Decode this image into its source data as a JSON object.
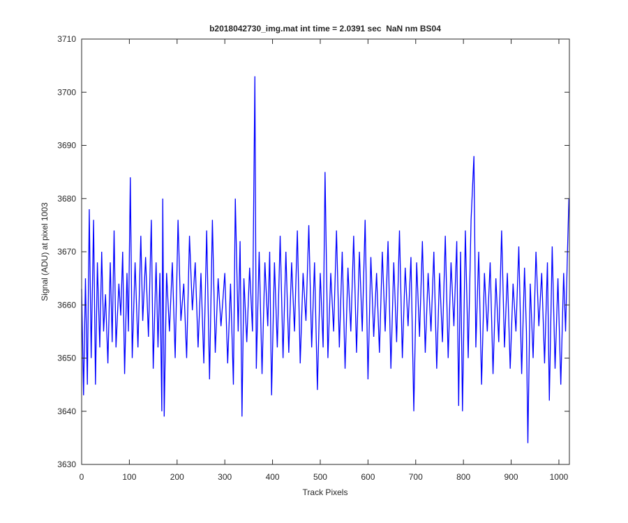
{
  "chart_data": {
    "type": "line",
    "title": "b2018042730_img.mat int time = 2.0391 sec  NaN nm BS04",
    "xlabel": "Track Pixels",
    "ylabel": "Signal (ADU) at pixel 1003",
    "xlim": [
      0,
      1022
    ],
    "ylim": [
      3630,
      3710
    ],
    "xticks": [
      0,
      100,
      200,
      300,
      400,
      500,
      600,
      700,
      800,
      900,
      1000
    ],
    "yticks": [
      3630,
      3640,
      3650,
      3660,
      3670,
      3680,
      3690,
      3700,
      3710
    ],
    "series": [
      {
        "color": "#0000ff",
        "x": [
          0,
          4,
          8,
          12,
          16,
          20,
          25,
          29,
          33,
          38,
          42,
          46,
          50,
          55,
          60,
          64,
          68,
          72,
          78,
          82,
          86,
          90,
          95,
          98,
          102,
          106,
          112,
          118,
          124,
          128,
          134,
          140,
          146,
          150,
          156,
          160,
          164,
          168,
          170,
          173,
          178,
          184,
          190,
          196,
          202,
          208,
          214,
          220,
          226,
          232,
          238,
          244,
          250,
          256,
          262,
          268,
          274,
          280,
          286,
          292,
          300,
          306,
          312,
          318,
          322,
          328,
          332,
          336,
          340,
          346,
          352,
          358,
          363,
          366,
          372,
          378,
          384,
          390,
          394,
          398,
          404,
          410,
          416,
          422,
          428,
          434,
          440,
          446,
          452,
          458,
          464,
          470,
          476,
          482,
          488,
          494,
          500,
          506,
          510,
          516,
          522,
          528,
          534,
          540,
          546,
          552,
          558,
          564,
          570,
          576,
          582,
          588,
          594,
          600,
          606,
          612,
          618,
          624,
          630,
          636,
          642,
          648,
          654,
          660,
          666,
          672,
          678,
          684,
          690,
          696,
          702,
          708,
          714,
          720,
          726,
          732,
          738,
          744,
          750,
          756,
          762,
          768,
          774,
          780,
          786,
          790,
          794,
          798,
          804,
          810,
          816,
          822,
          826,
          832,
          838,
          844,
          850,
          856,
          862,
          868,
          874,
          880,
          886,
          892,
          898,
          904,
          910,
          916,
          922,
          928,
          932,
          935,
          940,
          946,
          952,
          958,
          964,
          970,
          976,
          980,
          986,
          992,
          998,
          1004,
          1010,
          1014,
          1018,
          1021
        ],
        "values": [
          3663,
          3643,
          3665,
          3645,
          3678,
          3650,
          3676,
          3645,
          3668,
          3652,
          3670,
          3655,
          3662,
          3649,
          3668,
          3653,
          3674,
          3652,
          3664,
          3658,
          3670,
          3647,
          3666,
          3655,
          3684,
          3650,
          3668,
          3652,
          3673,
          3657,
          3669,
          3654,
          3676,
          3648,
          3668,
          3652,
          3666,
          3640,
          3680,
          3639,
          3666,
          3655,
          3668,
          3650,
          3676,
          3657,
          3664,
          3650,
          3673,
          3659,
          3668,
          3652,
          3666,
          3649,
          3674,
          3646,
          3676,
          3651,
          3665,
          3656,
          3666,
          3649,
          3664,
          3645,
          3680,
          3655,
          3672,
          3639,
          3665,
          3653,
          3667,
          3655,
          3703,
          3648,
          3670,
          3647,
          3668,
          3656,
          3670,
          3643,
          3668,
          3652,
          3673,
          3650,
          3670,
          3651,
          3668,
          3655,
          3674,
          3649,
          3666,
          3657,
          3675,
          3652,
          3668,
          3644,
          3666,
          3652,
          3685,
          3650,
          3666,
          3655,
          3674,
          3652,
          3670,
          3648,
          3667,
          3655,
          3673,
          3651,
          3670,
          3655,
          3676,
          3646,
          3669,
          3654,
          3666,
          3651,
          3670,
          3655,
          3672,
          3648,
          3668,
          3653,
          3674,
          3650,
          3667,
          3656,
          3669,
          3640,
          3668,
          3654,
          3672,
          3651,
          3666,
          3655,
          3670,
          3648,
          3666,
          3653,
          3673,
          3650,
          3668,
          3656,
          3672,
          3641,
          3670,
          3640,
          3674,
          3650,
          3676,
          3688,
          3652,
          3670,
          3645,
          3666,
          3655,
          3668,
          3647,
          3665,
          3653,
          3674,
          3652,
          3666,
          3648,
          3664,
          3655,
          3671,
          3647,
          3667,
          3655,
          3634,
          3664,
          3650,
          3670,
          3656,
          3666,
          3649,
          3668,
          3642,
          3671,
          3648,
          3665,
          3645,
          3666,
          3655,
          3670,
          3680
        ]
      }
    ]
  }
}
